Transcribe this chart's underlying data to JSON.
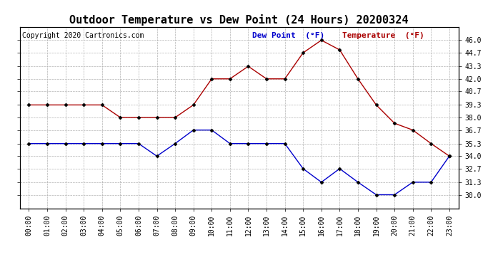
{
  "title": "Outdoor Temperature vs Dew Point (24 Hours) 20200324",
  "copyright": "Copyright 2020 Cartronics.com",
  "legend_dew": "Dew Point  (°F)",
  "legend_temp": "Temperature  (°F)",
  "hours": [
    "00:00",
    "01:00",
    "02:00",
    "03:00",
    "04:00",
    "05:00",
    "06:00",
    "07:00",
    "08:00",
    "09:00",
    "10:00",
    "11:00",
    "12:00",
    "13:00",
    "14:00",
    "15:00",
    "16:00",
    "17:00",
    "18:00",
    "19:00",
    "20:00",
    "21:00",
    "22:00",
    "23:00"
  ],
  "temperature": [
    39.3,
    39.3,
    39.3,
    39.3,
    39.3,
    38.0,
    38.0,
    38.0,
    38.0,
    39.3,
    42.0,
    42.0,
    43.3,
    42.0,
    42.0,
    44.7,
    46.0,
    45.0,
    42.0,
    39.3,
    37.4,
    36.7,
    35.3,
    34.0
  ],
  "dew_point": [
    35.3,
    35.3,
    35.3,
    35.3,
    35.3,
    35.3,
    35.3,
    34.0,
    35.3,
    36.7,
    36.7,
    35.3,
    35.3,
    35.3,
    35.3,
    32.7,
    31.3,
    32.7,
    31.3,
    30.0,
    30.0,
    31.3,
    31.3,
    34.0
  ],
  "temp_color": "#aa0000",
  "dew_color": "#0000cc",
  "marker_color": "#000000",
  "ylim_min": 28.6,
  "ylim_max": 47.4,
  "yticks": [
    30.0,
    31.3,
    32.7,
    34.0,
    35.3,
    36.7,
    38.0,
    39.3,
    40.7,
    42.0,
    43.3,
    44.7,
    46.0
  ],
  "ytick_labels": [
    "30.0",
    "31.3",
    "32.7",
    "34.0",
    "35.3",
    "36.7",
    "38.0",
    "39.3",
    "40.7",
    "42.0",
    "43.3",
    "44.7",
    "46.0"
  ],
  "bg_color": "#ffffff",
  "grid_color": "#aaaaaa",
  "title_fontsize": 11,
  "copyright_fontsize": 7,
  "legend_fontsize": 8,
  "tick_fontsize": 7
}
